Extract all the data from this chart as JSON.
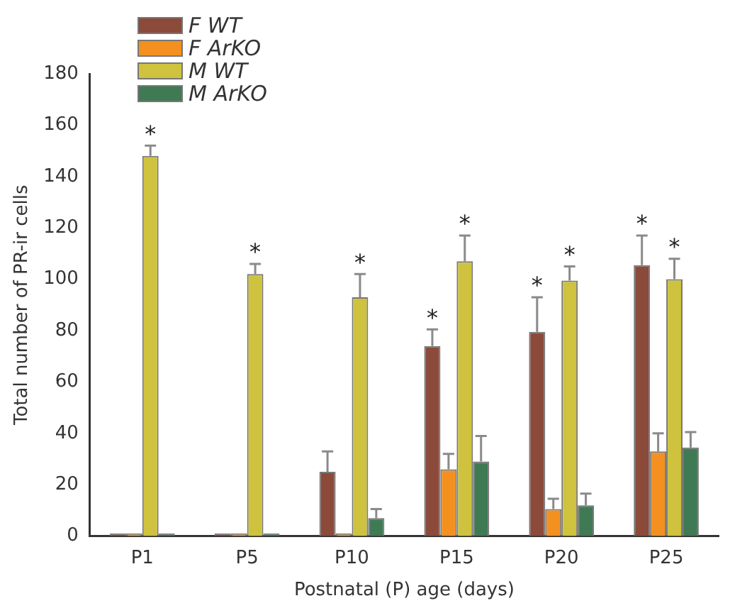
{
  "chart_data": {
    "type": "bar",
    "xlabel": "Postnatal (P) age (days)",
    "ylabel": "Total number of PR-ir cells",
    "categories": [
      "P1",
      "P5",
      "P10",
      "P15",
      "P20",
      "P25"
    ],
    "series": [
      {
        "name": "F WT",
        "color": "#8b4a3a",
        "values": [
          1,
          1,
          25,
          74,
          79.5,
          105.5
        ],
        "errors": [
          null,
          null,
          [
            25,
            33
          ],
          [
            74,
            80.5
          ],
          [
            79.5,
            93
          ],
          [
            105.5,
            117
          ]
        ]
      },
      {
        "name": "F ArKO",
        "color": "#f39020",
        "values": [
          1,
          1,
          1,
          26,
          10.5,
          33
        ],
        "errors": [
          null,
          null,
          null,
          [
            26,
            32
          ],
          [
            10.5,
            14.5
          ],
          [
            33,
            40
          ]
        ]
      },
      {
        "name": "M WT",
        "color": "#cfc23e",
        "values": [
          148,
          102,
          93,
          107,
          99.5,
          100
        ],
        "errors": [
          [
            148,
            152
          ],
          [
            102,
            106
          ],
          [
            93,
            102
          ],
          [
            107,
            117
          ],
          [
            99.5,
            105
          ],
          [
            100,
            108
          ]
        ]
      },
      {
        "name": "M ArKO",
        "color": "#3f7a55",
        "values": [
          1,
          1,
          7,
          29,
          12,
          34.5
        ],
        "errors": [
          null,
          null,
          [
            7,
            10.5
          ],
          [
            29,
            39
          ],
          [
            12,
            16.5
          ],
          [
            34.5,
            40.5
          ]
        ]
      }
    ],
    "ylim": [
      0,
      180
    ],
    "yticks": [
      0,
      20,
      40,
      60,
      80,
      100,
      120,
      140,
      160,
      180
    ],
    "grid": false,
    "legend": "top left",
    "annotations": [
      {
        "text": "*",
        "x": "P1",
        "y": 148
      },
      {
        "text": "*",
        "x": "P5",
        "y": 102
      },
      {
        "text": "*",
        "x": "P10",
        "y": 93
      },
      {
        "text": "*",
        "x": "P15",
        "y": 74
      },
      {
        "text": "*",
        "x": "P15",
        "y": 107
      },
      {
        "text": "*",
        "x": "P20",
        "y": 79.5
      },
      {
        "text": "*",
        "x": "P20",
        "y": 99.5
      },
      {
        "text": "*",
        "x": "P25",
        "y": 105.5
      },
      {
        "text": "*",
        "x": "P25",
        "y": 100
      }
    ]
  }
}
